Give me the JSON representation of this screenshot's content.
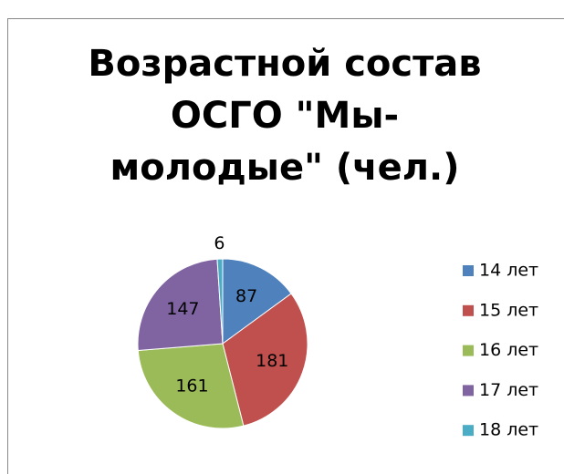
{
  "chart_data": {
    "type": "pie",
    "title": "Возрастной состав ОСГО \"Мы-молодые\" (чел.)",
    "categories": [
      "14 лет",
      "15 лет",
      "16 лет",
      "17 лет",
      "18 лет"
    ],
    "values": [
      87,
      181,
      161,
      147,
      6
    ],
    "colors": [
      "#4f81bd",
      "#c0504d",
      "#9bbb59",
      "#8064a2",
      "#4bacc6"
    ],
    "legend": "right"
  }
}
